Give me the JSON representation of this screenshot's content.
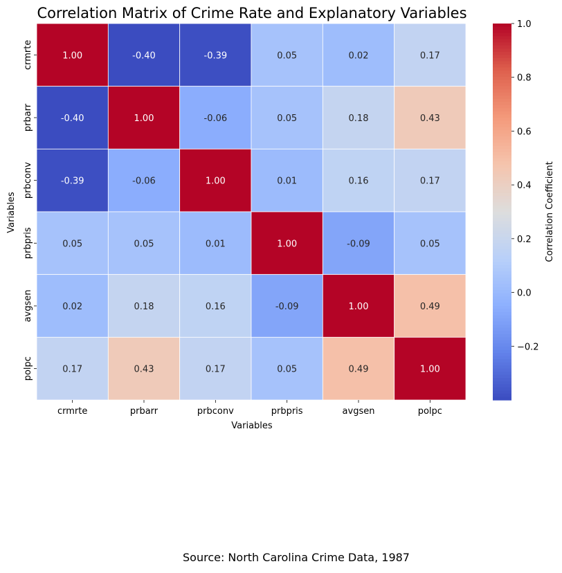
{
  "chart_data": {
    "type": "heatmap",
    "title": "Correlation Matrix of Crime Rate and Explanatory Variables",
    "xlabel": "Variables",
    "ylabel": "Variables",
    "x_categories": [
      "crmrte",
      "prbarr",
      "prbconv",
      "prbpris",
      "avgsen",
      "polpc"
    ],
    "y_categories": [
      "crmrte",
      "prbarr",
      "prbconv",
      "prbpris",
      "avgsen",
      "polpc"
    ],
    "values": [
      [
        1.0,
        -0.4,
        -0.39,
        0.05,
        0.02,
        0.17
      ],
      [
        -0.4,
        1.0,
        -0.06,
        0.05,
        0.18,
        0.43
      ],
      [
        -0.39,
        -0.06,
        1.0,
        0.01,
        0.16,
        0.17
      ],
      [
        0.05,
        0.05,
        0.01,
        1.0,
        -0.09,
        0.05
      ],
      [
        0.02,
        0.18,
        0.16,
        -0.09,
        1.0,
        0.49
      ],
      [
        0.17,
        0.43,
        0.17,
        0.05,
        0.49,
        1.0
      ]
    ],
    "value_format": "2 decimals",
    "colormap": "coolwarm",
    "color_range": [
      -0.4,
      1.0
    ],
    "colorbar": {
      "label": "Correlation Coefficient",
      "ticks": [
        -0.2,
        0.0,
        0.2,
        0.4,
        0.6,
        0.8,
        1.0
      ],
      "tick_labels": [
        "−0.2",
        "0.0",
        "0.2",
        "0.4",
        "0.6",
        "0.8",
        "1.0"
      ]
    },
    "annotation_text": "Source: North Carolina Crime Data, 1987"
  }
}
